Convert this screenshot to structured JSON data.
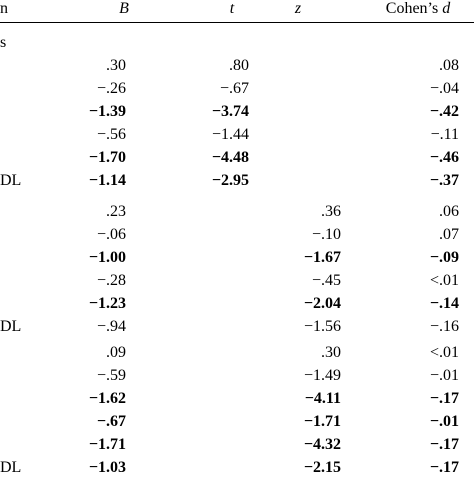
{
  "header": {
    "col0": "n",
    "col_B": "B",
    "col_t": "t",
    "col_z": "z",
    "col_d_prefix": "Cohen’s ",
    "col_d_italic": "d"
  },
  "sections": [
    {
      "label": "s",
      "rows": [
        {
          "label": "",
          "B": ".30",
          "t": ".80",
          "z": "",
          "d": ".08",
          "bold": false
        },
        {
          "label": "",
          "B": "−.26",
          "t": "−.67",
          "z": "",
          "d": "−.04",
          "bold": false
        },
        {
          "label": "",
          "B": "−1.39",
          "t": "−3.74",
          "z": "",
          "d": "−.42",
          "bold": true
        },
        {
          "label": "",
          "B": "−.56",
          "t": "−1.44",
          "z": "",
          "d": "−.11",
          "bold": false
        },
        {
          "label": "",
          "B": "−1.70",
          "t": "−4.48",
          "z": "",
          "d": "−.46",
          "bold": true
        },
        {
          "label": "DL",
          "B": "−1.14",
          "t": "−2.95",
          "z": "",
          "d": "−.37",
          "bold": true
        }
      ]
    },
    {
      "label": "",
      "rows": [
        {
          "label": "",
          "B": ".23",
          "t": "",
          "z": ".36",
          "d": ".06",
          "bold": false
        },
        {
          "label": "",
          "B": "−.06",
          "t": "",
          "z": "−.10",
          "d": ".07",
          "bold": false
        },
        {
          "label": "",
          "B": "−1.00",
          "t": "",
          "z": "−1.67",
          "d": "−.09",
          "bold": true
        },
        {
          "label": "",
          "B": "−.28",
          "t": "",
          "z": "−.45",
          "d": "<.01",
          "bold": false
        },
        {
          "label": "",
          "B": "−1.23",
          "t": "",
          "z": "−2.04",
          "d": "−.14",
          "bold": true
        },
        {
          "label": "DL",
          "B": "−.94",
          "t": "",
          "z": "−1.56",
          "d": "−.16",
          "bold": false
        }
      ]
    },
    {
      "label": "",
      "rows": [
        {
          "label": "",
          "B": ".09",
          "t": "",
          "z": ".30",
          "d": "<.01",
          "bold": false
        },
        {
          "label": "",
          "B": "−.59",
          "t": "",
          "z": "−1.49",
          "d": "−.01",
          "bold": false
        },
        {
          "label": "",
          "B": "−1.62",
          "t": "",
          "z": "−4.11",
          "d": "−.17",
          "bold": true
        },
        {
          "label": "",
          "B": "−.67",
          "t": "",
          "z": "−1.71",
          "d": "−.01",
          "bold": true
        },
        {
          "label": "",
          "B": "−1.71",
          "t": "",
          "z": "−4.32",
          "d": "−.17",
          "bold": true
        },
        {
          "label": "DL",
          "B": "−1.03",
          "t": "",
          "z": "−2.15",
          "d": "−.17",
          "bold": true
        }
      ]
    }
  ]
}
